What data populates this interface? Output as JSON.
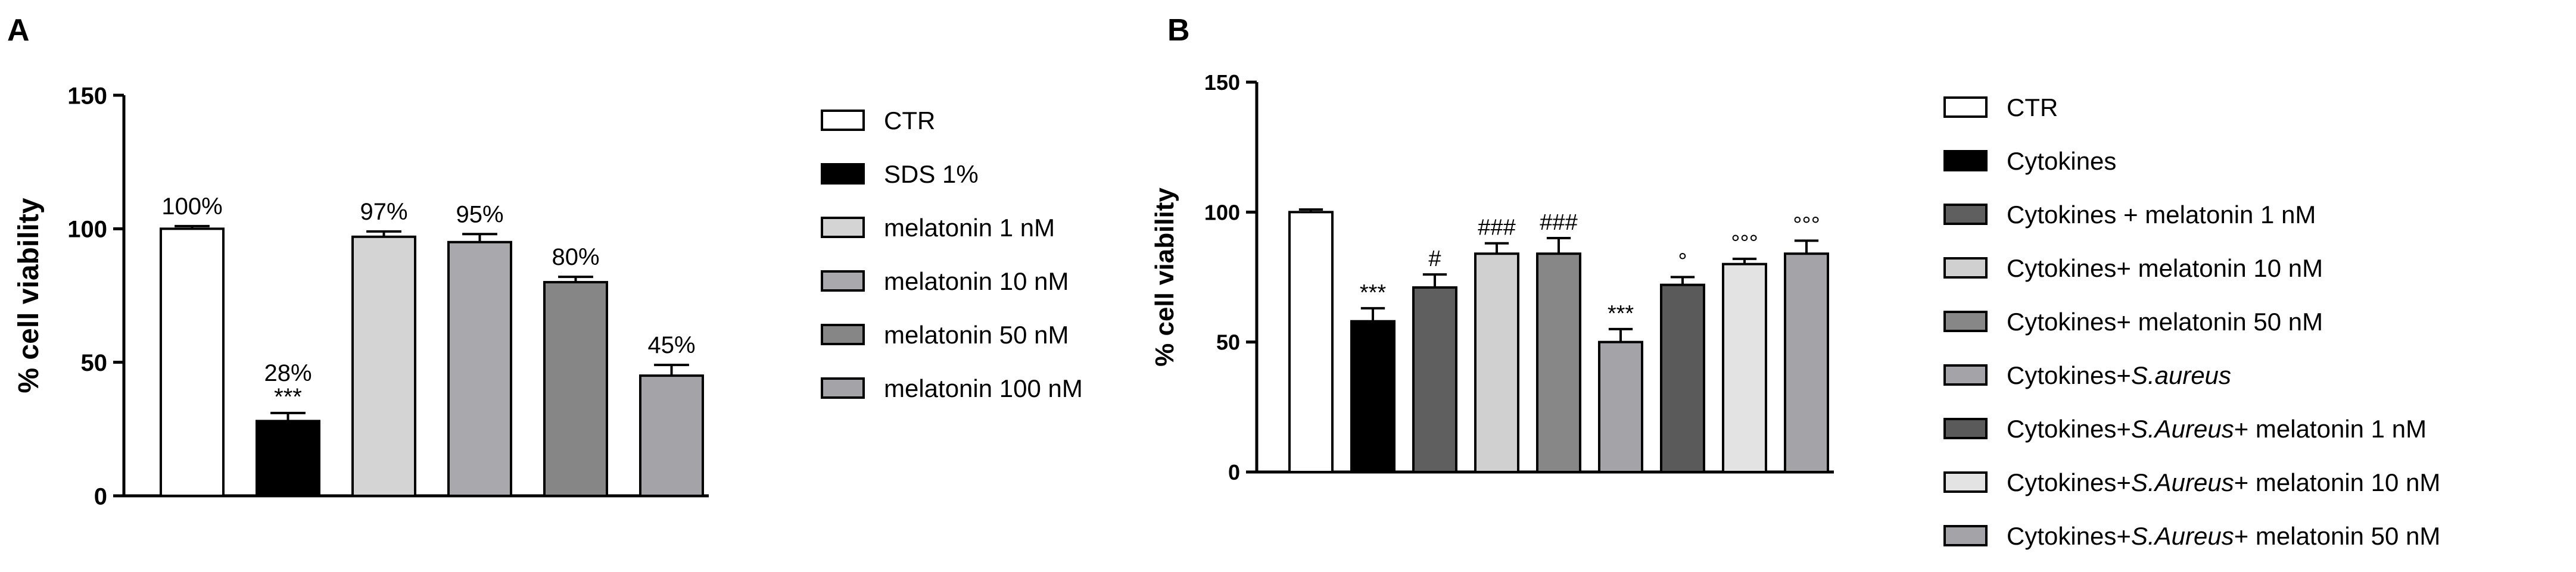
{
  "panel_labels": [
    "A",
    "B"
  ],
  "chart_data": [
    {
      "type": "bar",
      "panel": "A",
      "ylabel": "% cell viability",
      "ylim": [
        0,
        150
      ],
      "yticks": [
        0,
        50,
        100,
        150
      ],
      "categories": [
        "CTR",
        "SDS 1%",
        "melatonin 1 nM",
        "melatonin 10 nM",
        "melatonin 50 nM",
        "melatonin 100 nM"
      ],
      "values": [
        100,
        28,
        97,
        95,
        80,
        45
      ],
      "errors": [
        1,
        3,
        2,
        3,
        2,
        4
      ],
      "value_labels": [
        "100%",
        "28%",
        "97%",
        "95%",
        "80%",
        "45%"
      ],
      "significance": [
        "",
        "***",
        "",
        "",
        "",
        ""
      ],
      "colors": [
        "#ffffff",
        "#000000",
        "#d4d4d4",
        "#a9a9ad",
        "#868686",
        "#a3a3a8"
      ],
      "legend": [
        {
          "label": "CTR",
          "italic": ""
        },
        {
          "label": "SDS 1%",
          "italic": ""
        },
        {
          "label": "melatonin 1 nM",
          "italic": ""
        },
        {
          "label": "melatonin 10 nM",
          "italic": ""
        },
        {
          "label": "melatonin 50 nM",
          "italic": ""
        },
        {
          "label": "melatonin 100 nM",
          "italic": ""
        }
      ]
    },
    {
      "type": "bar",
      "panel": "B",
      "ylabel": "% cell viability",
      "ylim": [
        0,
        150
      ],
      "yticks": [
        0,
        50,
        100,
        150
      ],
      "categories": [
        "CTR",
        "Cytokines",
        "Cytokines + melatonin 1 nM",
        "Cytokines+ melatonin 10 nM",
        "Cytokines+ melatonin 50 nM",
        "Cytokines+S.aureus",
        "Cytokines+S.Aureus+ melatonin 1 nM",
        "Cytokines+S.Aureus+ melatonin 10 nM",
        "Cytokines+S.Aureus+ melatonin 50 nM"
      ],
      "values": [
        100,
        58,
        71,
        84,
        84,
        50,
        72,
        80,
        84
      ],
      "errors": [
        1,
        5,
        5,
        4,
        6,
        5,
        3,
        2,
        5
      ],
      "significance": [
        "",
        "***",
        "#",
        "###",
        "###",
        "***",
        "°",
        "°°°",
        "°°°"
      ],
      "colors": [
        "#ffffff",
        "#000000",
        "#5f5f5f",
        "#d0d0d0",
        "#878787",
        "#a3a3a8",
        "#5a5a5a",
        "#e3e3e3",
        "#a3a3a8"
      ],
      "legend": [
        {
          "label": "CTR",
          "italic": "",
          "suffix": ""
        },
        {
          "label": "Cytokines",
          "italic": "",
          "suffix": ""
        },
        {
          "label": "Cytokines + melatonin 1 nM",
          "italic": "",
          "suffix": ""
        },
        {
          "label": "Cytokines+ melatonin 10 nM",
          "italic": "",
          "suffix": ""
        },
        {
          "label": "Cytokines+ melatonin 50 nM",
          "italic": "",
          "suffix": ""
        },
        {
          "label": "Cytokines+",
          "italic": "S.aureus",
          "suffix": ""
        },
        {
          "label": "Cytokines+",
          "italic": "S.Aureus",
          "suffix": "+ melatonin 1 nM"
        },
        {
          "label": "Cytokines+",
          "italic": "S.Aureus",
          "suffix": "+ melatonin 10 nM"
        },
        {
          "label": "Cytokines+",
          "italic": "S.Aureus",
          "suffix": "+ melatonin 50 nM"
        }
      ]
    }
  ]
}
